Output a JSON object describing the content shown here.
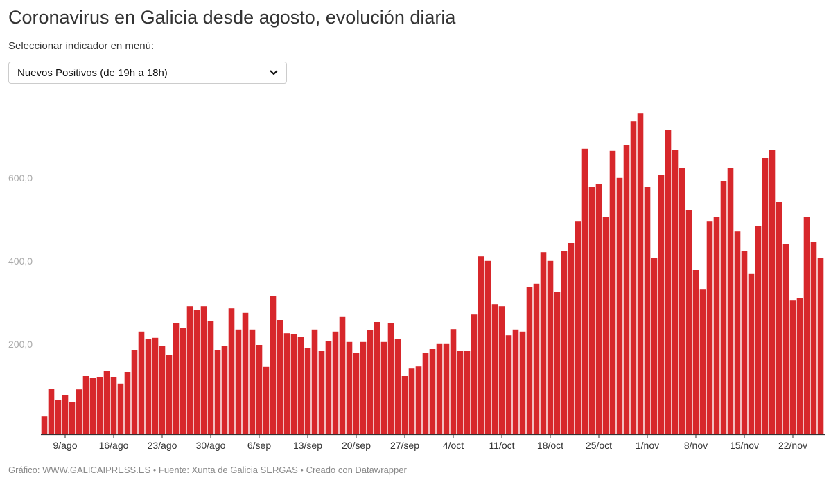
{
  "header": {
    "title": "Coronavirus en Galicia desde agosto, evolución diaria",
    "selector_label": "Seleccionar indicador en menú:",
    "selector_value": "Nuevos Positivos (de 19h a 18h)",
    "selector_icon": "chevron-down-icon"
  },
  "footer": {
    "text": "Gráfico: WWW.GALICAIPRESS.ES • Fuente: Xunta de Galicia SERGAS • Creado con Datawrapper"
  },
  "chart_data": {
    "type": "bar",
    "title": "Coronavirus en Galicia desde agosto, evolución diaria",
    "xlabel": "",
    "ylabel": "",
    "ylim": [
      0,
      800
    ],
    "grid": false,
    "bar_color": "#d7272b",
    "start_date": "6/ago",
    "end_date": "26/nov",
    "y_ticks": [
      "200,0",
      "400,0",
      "600,0"
    ],
    "y_tick_values": [
      200,
      400,
      600
    ],
    "x_ticks": [
      "9/ago",
      "16/ago",
      "23/ago",
      "30/ago",
      "6/sep",
      "13/sep",
      "20/sep",
      "27/sep",
      "4/oct",
      "11/oct",
      "18/oct",
      "25/oct",
      "1/nov",
      "8/nov",
      "15/nov",
      "22/nov"
    ],
    "x_tick_indices": [
      3,
      10,
      17,
      24,
      31,
      38,
      45,
      52,
      59,
      66,
      73,
      80,
      87,
      94,
      101,
      108
    ],
    "values": [
      43,
      110,
      82,
      95,
      78,
      108,
      140,
      135,
      137,
      152,
      138,
      122,
      150,
      203,
      247,
      230,
      232,
      213,
      190,
      267,
      255,
      308,
      300,
      308,
      272,
      202,
      213,
      303,
      252,
      292,
      252,
      215,
      162,
      332,
      275,
      243,
      240,
      235,
      208,
      252,
      200,
      225,
      247,
      282,
      222,
      195,
      222,
      250,
      270,
      222,
      267,
      230,
      140,
      158,
      163,
      195,
      205,
      217,
      217,
      253,
      200,
      200,
      288,
      428,
      417,
      313,
      308,
      238,
      252,
      247,
      355,
      362,
      438,
      417,
      342,
      440,
      460,
      513,
      687,
      595,
      602,
      523,
      682,
      617,
      695,
      753,
      773,
      595,
      425,
      625,
      733,
      685,
      640,
      540,
      395,
      348,
      513,
      522,
      610,
      640,
      488,
      440,
      387,
      500,
      665,
      685,
      560,
      457,
      323,
      327,
      523,
      463,
      425
    ]
  }
}
